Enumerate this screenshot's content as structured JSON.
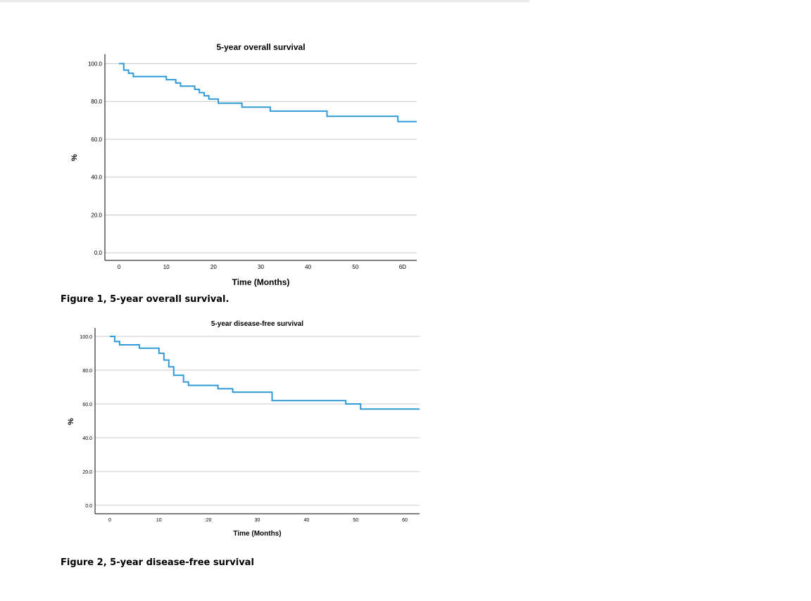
{
  "chart_data": [
    {
      "type": "line",
      "step": true,
      "title": "5-year overall survival",
      "xlabel": "Time (Months)",
      "ylabel": "%",
      "xlim": [
        -3,
        63
      ],
      "ylim": [
        -4,
        105
      ],
      "xticks": [
        0,
        10,
        20,
        30,
        40,
        50,
        60
      ],
      "xtick_labels": [
        "0",
        "10",
        "20",
        "30",
        "40",
        "50",
        "6D"
      ],
      "yticks": [
        0,
        20,
        40,
        60,
        80,
        100
      ],
      "ytick_labels": [
        "0.0",
        "20.0",
        "40.0",
        "60.0",
        "80.0",
        "100.0"
      ],
      "grid": true,
      "color": "#2e9ad8",
      "series": [
        {
          "x": [
            0,
            1,
            2,
            3,
            10,
            12,
            13,
            16,
            17,
            18,
            19,
            21,
            26,
            32,
            44,
            59,
            63
          ],
          "y": [
            100,
            96.6,
            94.9,
            93.2,
            91.5,
            89.8,
            88.1,
            86.4,
            84.7,
            83.0,
            81.3,
            79.1,
            77.0,
            74.9,
            72.2,
            69.4,
            69.4
          ]
        }
      ]
    },
    {
      "type": "line",
      "step": true,
      "title": "5-year disease-free survival",
      "xlabel": "Time (Months)",
      "ylabel": "%",
      "xlim": [
        -3,
        63
      ],
      "ylim": [
        -5,
        105
      ],
      "xticks": [
        0,
        10,
        20,
        30,
        40,
        50,
        60
      ],
      "xtick_labels": [
        "0",
        "10",
        ":20",
        "30",
        "40",
        "50",
        "60"
      ],
      "yticks": [
        0,
        20,
        40,
        60,
        80,
        100
      ],
      "ytick_labels": [
        "0.0",
        "20.0",
        "40.0",
        "60.0",
        "80.0",
        "100.0"
      ],
      "grid": true,
      "color": "#2e9ad8",
      "series": [
        {
          "x": [
            0,
            1,
            2,
            6,
            10,
            11,
            12,
            13,
            15,
            16,
            22,
            25,
            33,
            48,
            51,
            63
          ],
          "y": [
            100,
            97.0,
            95.0,
            93.0,
            90.0,
            86.0,
            82.0,
            77.0,
            73.0,
            71.0,
            69.0,
            67.0,
            62.0,
            60.0,
            57.0,
            57.0
          ]
        }
      ]
    }
  ],
  "captions": {
    "figure1": "Figure 1, 5-year overall survival.",
    "figure2": "Figure 2, 5-year disease-free survival"
  }
}
